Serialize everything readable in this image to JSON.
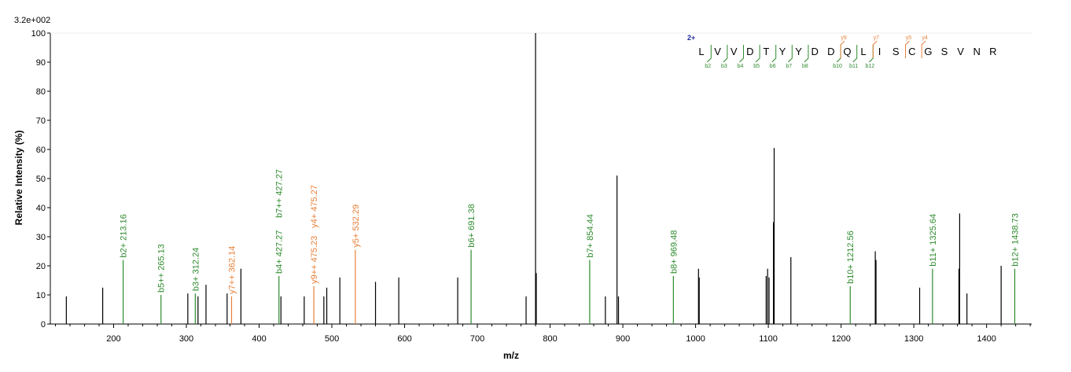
{
  "intensity_max_label": "3.2e+002",
  "chart_data": {
    "type": "bar",
    "xlabel": "m/z",
    "ylabel": "Relative Intensity (%)",
    "xlim": [
      113,
      1462
    ],
    "ylim": [
      0,
      100
    ],
    "x_ticks": [
      200,
      300,
      400,
      500,
      600,
      700,
      800,
      900,
      1000,
      1100,
      1200,
      1300,
      1400
    ],
    "y_ticks": [
      0,
      10,
      20,
      30,
      40,
      50,
      60,
      70,
      80,
      90,
      100
    ],
    "colors": {
      "unassigned": "#000000",
      "b_ion": "#2e8b2e",
      "y_ion": "#e8803a"
    },
    "peaks": [
      {
        "x": 135,
        "y": 9.5
      },
      {
        "x": 185,
        "y": 12.5
      },
      {
        "x": 213.16,
        "y": 22,
        "ion": "b",
        "label": "b2+ 213.16"
      },
      {
        "x": 265.13,
        "y": 10,
        "ion": "b",
        "label": "b5++ 265.13"
      },
      {
        "x": 302,
        "y": 10.5
      },
      {
        "x": 312.24,
        "y": 10.5,
        "ion": "b",
        "label": "b3+ 312.24"
      },
      {
        "x": 316,
        "y": 9.5
      },
      {
        "x": 327,
        "y": 13.5
      },
      {
        "x": 356,
        "y": 10.5
      },
      {
        "x": 362.14,
        "y": 9.5,
        "ion": "y",
        "label": "y7++ 362.14"
      },
      {
        "x": 375,
        "y": 19
      },
      {
        "x": 427.27,
        "y": 16.5,
        "ion": "b",
        "label": "b4+ 427.27"
      },
      {
        "x": 430,
        "y": 9.5
      },
      {
        "x": 462,
        "y": 9.5
      },
      {
        "x": 475.23,
        "y": 13,
        "ion": "y",
        "label": "y9++ 475.23 · y4+ 475.27"
      },
      {
        "x": 489,
        "y": 9.5
      },
      {
        "x": 493,
        "y": 12.5
      },
      {
        "x": 511,
        "y": 16
      },
      {
        "x": 532.29,
        "y": 25.5,
        "ion": "y",
        "label": "y5+ 532.29"
      },
      {
        "x": 560,
        "y": 14.5
      },
      {
        "x": 592,
        "y": 16
      },
      {
        "x": 673,
        "y": 16
      },
      {
        "x": 691.38,
        "y": 25.5,
        "ion": "b",
        "label": "b6+ 691.38"
      },
      {
        "x": 767,
        "y": 9.5
      },
      {
        "x": 780,
        "y": 100
      },
      {
        "x": 781,
        "y": 17.5
      },
      {
        "x": 854.44,
        "y": 22,
        "ion": "b",
        "label": "b7+ 854.44"
      },
      {
        "x": 876,
        "y": 9.5
      },
      {
        "x": 892,
        "y": 51
      },
      {
        "x": 894,
        "y": 9.5
      },
      {
        "x": 969.48,
        "y": 16.5,
        "ion": "b",
        "label": "b8+ 969.48"
      },
      {
        "x": 1004,
        "y": 19
      },
      {
        "x": 1005,
        "y": 16
      },
      {
        "x": 1097,
        "y": 16.5
      },
      {
        "x": 1099,
        "y": 19
      },
      {
        "x": 1101,
        "y": 16
      },
      {
        "x": 1107,
        "y": 35
      },
      {
        "x": 1108,
        "y": 60.5
      },
      {
        "x": 1131,
        "y": 23
      },
      {
        "x": 1212.56,
        "y": 13,
        "ion": "b",
        "label": "b10+ 1212.56"
      },
      {
        "x": 1247,
        "y": 25
      },
      {
        "x": 1248,
        "y": 22
      },
      {
        "x": 1308,
        "y": 12.5
      },
      {
        "x": 1325.64,
        "y": 19,
        "ion": "b",
        "label": "b11+ 1325.64"
      },
      {
        "x": 1362,
        "y": 19
      },
      {
        "x": 1363,
        "y": 38
      },
      {
        "x": 1373,
        "y": 10.5
      },
      {
        "x": 1420,
        "y": 20
      },
      {
        "x": 1438.73,
        "y": 19,
        "ion": "b",
        "label": "b12+ 1438.73"
      }
    ],
    "extra_labels": [
      {
        "x": 427.27,
        "text": "b7++ 427.27",
        "ion": "b"
      },
      {
        "x": 475.23,
        "text": "y4+ 475.27",
        "ion": "y"
      }
    ]
  },
  "sequence": {
    "charge": "2+",
    "residues": [
      "L",
      "V",
      "V",
      "D",
      "T",
      "Y",
      "Y",
      "D",
      "D",
      "Q",
      "L",
      "I",
      "S",
      "C",
      "G",
      "S",
      "V",
      "N",
      "R"
    ],
    "b_ions": [
      {
        "after": 1,
        "label": "b2"
      },
      {
        "after": 2,
        "label": "b3"
      },
      {
        "after": 3,
        "label": "b4"
      },
      {
        "after": 4,
        "label": "b5"
      },
      {
        "after": 5,
        "label": "b6"
      },
      {
        "after": 6,
        "label": "b7"
      },
      {
        "after": 7,
        "label": "b8"
      },
      {
        "after": 9,
        "label": "b10"
      },
      {
        "after": 10,
        "label": "b11"
      },
      {
        "after": 11,
        "label": "b12"
      }
    ],
    "y_ions": [
      {
        "after": 9,
        "label": "y9"
      },
      {
        "after": 11,
        "label": "y7"
      },
      {
        "after": 13,
        "label": "y5"
      },
      {
        "after": 14,
        "label": "y4"
      }
    ]
  }
}
